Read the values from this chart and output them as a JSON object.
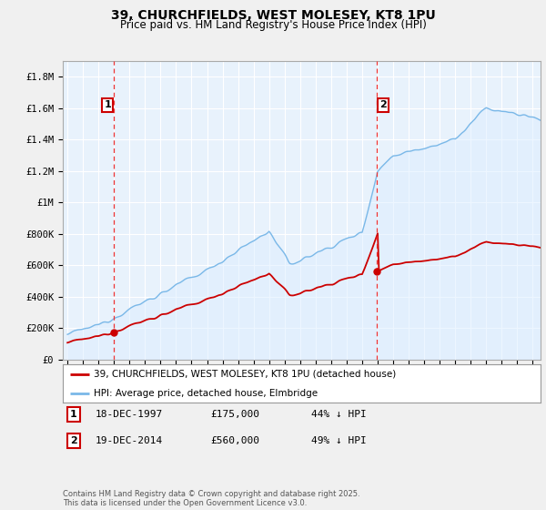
{
  "title": "39, CHURCHFIELDS, WEST MOLESEY, KT8 1PU",
  "subtitle": "Price paid vs. HM Land Registry's House Price Index (HPI)",
  "ylabel_ticks": [
    "£0",
    "£200K",
    "£400K",
    "£600K",
    "£800K",
    "£1M",
    "£1.2M",
    "£1.4M",
    "£1.6M",
    "£1.8M"
  ],
  "ytick_values": [
    0,
    200000,
    400000,
    600000,
    800000,
    1000000,
    1200000,
    1400000,
    1600000,
    1800000
  ],
  "ylim": [
    0,
    1900000
  ],
  "xlim_start": 1994.7,
  "xlim_end": 2025.5,
  "sale1_year": 1997.96,
  "sale1_price": 175000,
  "sale1_label": "1",
  "sale2_year": 2014.96,
  "sale2_price": 560000,
  "sale2_label": "2",
  "legend_line1": "39, CHURCHFIELDS, WEST MOLESEY, KT8 1PU (detached house)",
  "legend_line2": "HPI: Average price, detached house, Elmbridge",
  "note1_label": "1",
  "note1_date": "18-DEC-1997",
  "note1_price": "£175,000",
  "note1_hpi": "44% ↓ HPI",
  "note2_label": "2",
  "note2_date": "19-DEC-2014",
  "note2_price": "£560,000",
  "note2_hpi": "49% ↓ HPI",
  "copyright": "Contains HM Land Registry data © Crown copyright and database right 2025.\nThis data is licensed under the Open Government Licence v3.0.",
  "hpi_color": "#7ab8e8",
  "hpi_fill_color": "#ddeeff",
  "price_color": "#cc0000",
  "vline_color": "#ee3333",
  "background_color": "#f0f0f0",
  "plot_bg_color": "#e8f2fc"
}
